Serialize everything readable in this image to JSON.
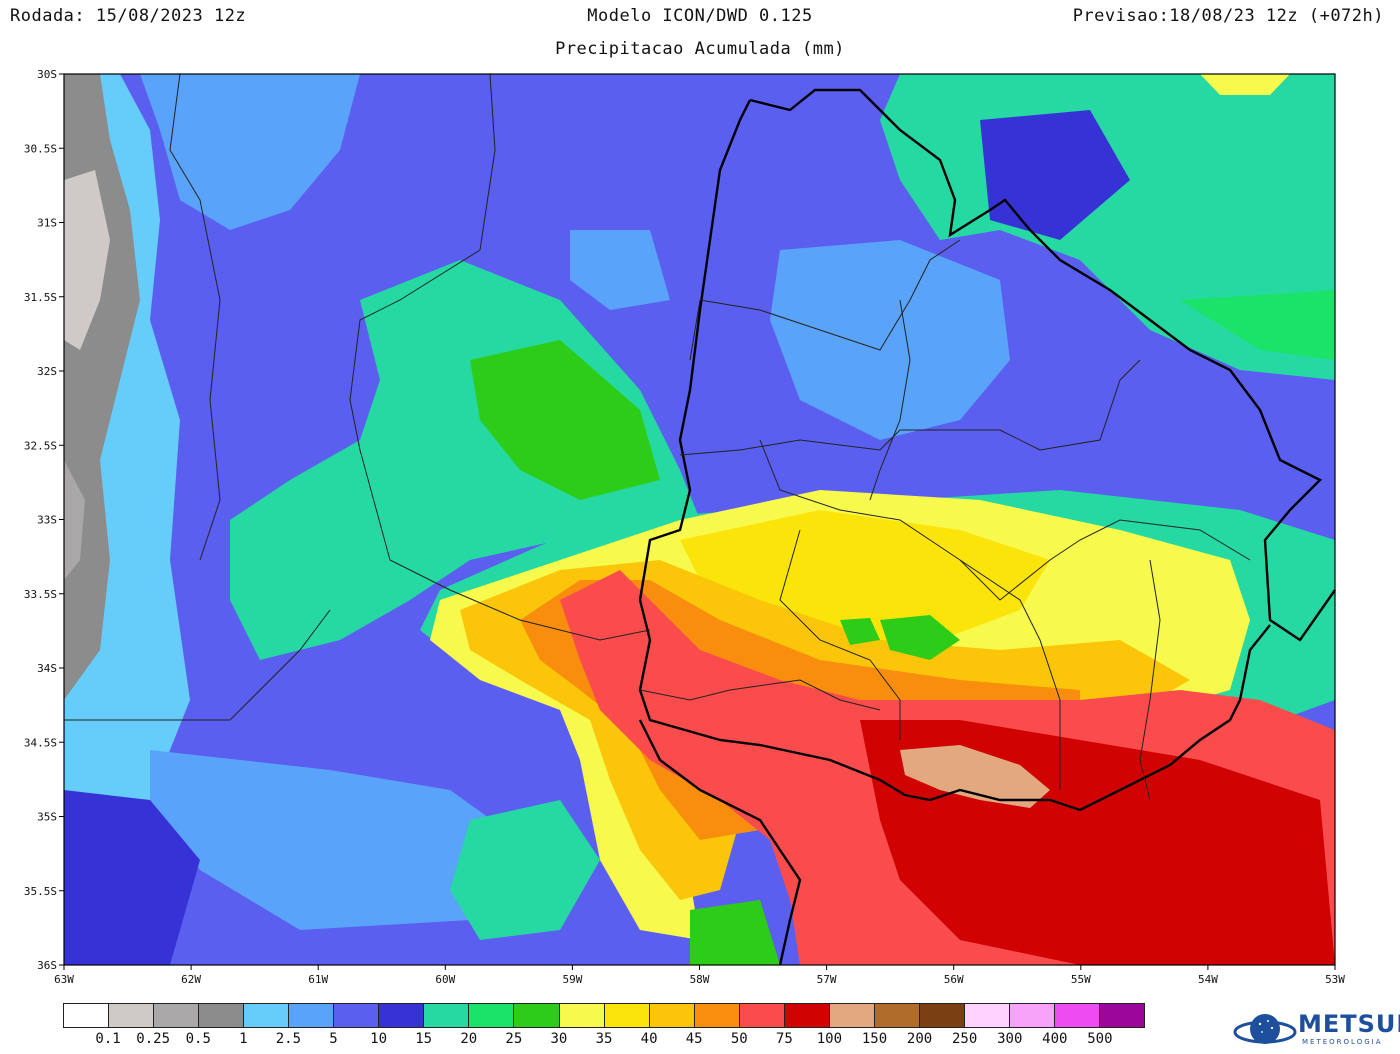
{
  "header": {
    "run": "Rodada: 15/08/2023 12z",
    "model": "Modelo ICON/DWD 0.125",
    "forecast": "Previsao:18/08/23 12z (+072h)",
    "subtitle": "Precipitacao Acumulada (mm)"
  },
  "axes": {
    "lat_labels": [
      "30S",
      "30.5S",
      "31S",
      "31.5S",
      "32S",
      "32.5S",
      "33S",
      "33.5S",
      "34S",
      "34.5S",
      "35S",
      "35.5S",
      "36S"
    ],
    "lon_labels": [
      "63W",
      "62W",
      "61W",
      "60W",
      "59W",
      "58W",
      "57W",
      "56W",
      "55W",
      "54W",
      "53W"
    ]
  },
  "legend": {
    "colors": [
      "#ffffff",
      "#cfc9c8",
      "#a9a7a7",
      "#8c8c8c",
      "#66cdfa",
      "#5aa3fa",
      "#5b5ff0",
      "#3632d6",
      "#26d9a3",
      "#1be36a",
      "#2dcc19",
      "#f7f94d",
      "#fbe40a",
      "#fbc60a",
      "#f98e0e",
      "#fa4c4c",
      "#d10202",
      "#e2a87f",
      "#b06c2a",
      "#7a3f12",
      "#ffd2ff",
      "#f7a3fa",
      "#ec4cf2",
      "#9b079b"
    ],
    "labels": [
      "0.1",
      "0.25",
      "0.5",
      "1",
      "2.5",
      "5",
      "10",
      "15",
      "20",
      "25",
      "30",
      "35",
      "40",
      "45",
      "50",
      "75",
      "100",
      "150",
      "200",
      "250",
      "300",
      "400",
      "500"
    ]
  },
  "logo": {
    "text": "METSUL",
    "sub": "METEOROLOGIA"
  }
}
